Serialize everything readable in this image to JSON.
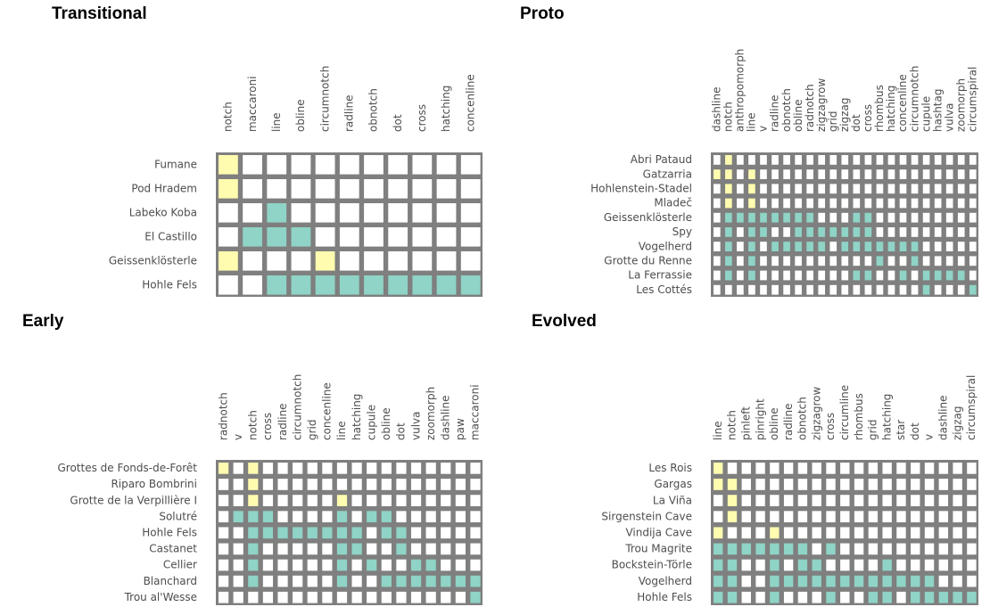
{
  "colors": {
    "background": "#ffffff",
    "grid": "#7f7f7f",
    "empty": "#ffffff",
    "first": "#fffcb0",
    "later": "#8fd4c6"
  },
  "chart_data": [
    {
      "type": "heatmap",
      "title": "Transitional",
      "columns": [
        "notch",
        "maccaroni",
        "line",
        "obline",
        "circumnotch",
        "radline",
        "obnotch",
        "dot",
        "cross",
        "hatching",
        "concenline"
      ],
      "rows": [
        "Fumane",
        "Pod Hradem",
        "Labeko Koba",
        "El Castillo",
        "Geissenklösterle",
        "Hohle Fels"
      ],
      "cells": [
        [
          1,
          0,
          0,
          0,
          0,
          0,
          0,
          0,
          0,
          0,
          0
        ],
        [
          1,
          0,
          0,
          0,
          0,
          0,
          0,
          0,
          0,
          0,
          0
        ],
        [
          0,
          0,
          2,
          0,
          0,
          0,
          0,
          0,
          0,
          0,
          0
        ],
        [
          0,
          2,
          2,
          2,
          0,
          0,
          0,
          0,
          0,
          0,
          0
        ],
        [
          1,
          0,
          0,
          0,
          1,
          0,
          0,
          0,
          0,
          0,
          0
        ],
        [
          0,
          0,
          2,
          2,
          2,
          2,
          2,
          2,
          2,
          2,
          2
        ]
      ]
    },
    {
      "type": "heatmap",
      "title": "Proto",
      "columns": [
        "dashline",
        "notch",
        "anthropomorph",
        "line",
        "v",
        "radline",
        "obnotch",
        "obline",
        "radnotch",
        "zigzagrow",
        "grid",
        "zigzag",
        "dot",
        "cross",
        "rhombus",
        "hatching",
        "concenline",
        "circumnotch",
        "cupule",
        "hashtag",
        "vulva",
        "zoomorph",
        "circumspiral"
      ],
      "rows": [
        "Abri Pataud",
        "Gatzarria",
        "Hohlenstein-Stadel",
        "Mladeč",
        "Geissenklösterle",
        "Spy",
        "Vogelherd",
        "Grotte du Renne",
        "La Ferrassie",
        "Les Cottés"
      ],
      "cells": [
        [
          0,
          1,
          0,
          0,
          0,
          0,
          0,
          0,
          0,
          0,
          0,
          0,
          0,
          0,
          0,
          0,
          0,
          0,
          0,
          0,
          0,
          0,
          0
        ],
        [
          1,
          1,
          0,
          1,
          0,
          0,
          0,
          0,
          0,
          0,
          0,
          0,
          0,
          0,
          0,
          0,
          0,
          0,
          0,
          0,
          0,
          0,
          0
        ],
        [
          0,
          1,
          0,
          1,
          0,
          0,
          0,
          0,
          0,
          0,
          0,
          0,
          0,
          0,
          0,
          0,
          0,
          0,
          0,
          0,
          0,
          0,
          0
        ],
        [
          0,
          1,
          0,
          1,
          0,
          0,
          0,
          0,
          0,
          0,
          0,
          0,
          0,
          0,
          0,
          0,
          0,
          0,
          0,
          0,
          0,
          0,
          0
        ],
        [
          0,
          2,
          2,
          2,
          2,
          2,
          2,
          2,
          2,
          0,
          0,
          0,
          2,
          2,
          0,
          0,
          0,
          0,
          0,
          0,
          0,
          0,
          0
        ],
        [
          0,
          2,
          0,
          2,
          2,
          0,
          0,
          2,
          2,
          2,
          2,
          2,
          2,
          2,
          0,
          0,
          0,
          0,
          0,
          0,
          0,
          0,
          0
        ],
        [
          0,
          2,
          0,
          2,
          0,
          2,
          2,
          2,
          2,
          2,
          0,
          2,
          2,
          2,
          2,
          2,
          2,
          2,
          0,
          0,
          0,
          0,
          0
        ],
        [
          0,
          2,
          0,
          2,
          0,
          0,
          0,
          0,
          0,
          0,
          0,
          0,
          0,
          0,
          2,
          0,
          0,
          2,
          0,
          0,
          0,
          0,
          0
        ],
        [
          0,
          2,
          0,
          2,
          0,
          0,
          0,
          0,
          0,
          0,
          0,
          0,
          2,
          2,
          0,
          0,
          2,
          0,
          2,
          2,
          2,
          2,
          0
        ],
        [
          0,
          0,
          0,
          0,
          0,
          0,
          0,
          0,
          0,
          0,
          0,
          0,
          0,
          0,
          0,
          0,
          0,
          0,
          2,
          0,
          0,
          0,
          2
        ]
      ]
    },
    {
      "type": "heatmap",
      "title": "Early",
      "columns": [
        "radnotch",
        "v",
        "notch",
        "cross",
        "radline",
        "circumnotch",
        "grid",
        "concenline",
        "line",
        "hatching",
        "cupule",
        "obline",
        "dot",
        "vulva",
        "zoomorph",
        "dashline",
        "paw",
        "maccaroni"
      ],
      "rows": [
        "Grottes de Fonds-de-Forêt",
        "Riparo Bombrini",
        "Grotte de la Verpillière I",
        "Solutré",
        "Hohle Fels",
        "Castanet",
        "Cellier",
        "Blanchard",
        "Trou al'Wesse"
      ],
      "cells": [
        [
          1,
          0,
          1,
          0,
          0,
          0,
          0,
          0,
          0,
          0,
          0,
          0,
          0,
          0,
          0,
          0,
          0,
          0
        ],
        [
          0,
          0,
          1,
          0,
          0,
          0,
          0,
          0,
          0,
          0,
          0,
          0,
          0,
          0,
          0,
          0,
          0,
          0
        ],
        [
          0,
          0,
          1,
          0,
          0,
          0,
          0,
          0,
          1,
          0,
          0,
          0,
          0,
          0,
          0,
          0,
          0,
          0
        ],
        [
          0,
          2,
          2,
          2,
          0,
          0,
          0,
          0,
          2,
          0,
          2,
          2,
          0,
          0,
          0,
          0,
          0,
          0
        ],
        [
          0,
          0,
          2,
          2,
          2,
          2,
          2,
          2,
          2,
          2,
          0,
          2,
          2,
          0,
          0,
          0,
          0,
          0
        ],
        [
          0,
          0,
          2,
          0,
          0,
          0,
          0,
          0,
          2,
          2,
          0,
          0,
          2,
          0,
          0,
          0,
          0,
          0
        ],
        [
          0,
          0,
          2,
          0,
          0,
          0,
          0,
          0,
          2,
          0,
          2,
          0,
          0,
          2,
          2,
          0,
          0,
          0
        ],
        [
          0,
          0,
          2,
          0,
          0,
          0,
          0,
          0,
          2,
          0,
          0,
          2,
          2,
          2,
          2,
          2,
          2,
          2
        ],
        [
          0,
          0,
          0,
          0,
          0,
          0,
          0,
          0,
          0,
          0,
          0,
          0,
          0,
          0,
          0,
          0,
          0,
          2
        ]
      ]
    },
    {
      "type": "heatmap",
      "title": "Evolved",
      "columns": [
        "line",
        "notch",
        "pinleft",
        "pinright",
        "obline",
        "radline",
        "obnotch",
        "zigzagrow",
        "cross",
        "circumline",
        "rhombus",
        "grid",
        "hatching",
        "star",
        "dot",
        "v",
        "dashline",
        "zigzag",
        "circumspiral"
      ],
      "rows": [
        "Les Rois",
        "Gargas",
        "La Viña",
        "Sirgenstein Cave",
        "Vindija Cave",
        "Trou Magrite",
        "Bockstein-Törle",
        "Vogelherd",
        "Hohle Fels"
      ],
      "cells": [
        [
          1,
          0,
          0,
          0,
          0,
          0,
          0,
          0,
          0,
          0,
          0,
          0,
          0,
          0,
          0,
          0,
          0,
          0,
          0
        ],
        [
          1,
          1,
          0,
          0,
          0,
          0,
          0,
          0,
          0,
          0,
          0,
          0,
          0,
          0,
          0,
          0,
          0,
          0,
          0
        ],
        [
          0,
          1,
          0,
          0,
          0,
          0,
          0,
          0,
          0,
          0,
          0,
          0,
          0,
          0,
          0,
          0,
          0,
          0,
          0
        ],
        [
          0,
          1,
          0,
          0,
          0,
          0,
          0,
          0,
          0,
          0,
          0,
          0,
          0,
          0,
          0,
          0,
          0,
          0,
          0
        ],
        [
          1,
          0,
          0,
          0,
          1,
          0,
          0,
          0,
          0,
          0,
          0,
          0,
          0,
          0,
          0,
          0,
          0,
          0,
          0
        ],
        [
          2,
          2,
          2,
          2,
          2,
          2,
          2,
          0,
          2,
          0,
          0,
          0,
          0,
          0,
          0,
          0,
          0,
          0,
          0
        ],
        [
          2,
          2,
          0,
          0,
          2,
          0,
          2,
          2,
          0,
          0,
          0,
          0,
          2,
          0,
          0,
          0,
          0,
          0,
          0
        ],
        [
          2,
          2,
          0,
          0,
          2,
          2,
          2,
          2,
          2,
          2,
          2,
          2,
          2,
          2,
          2,
          2,
          0,
          0,
          0
        ],
        [
          2,
          2,
          0,
          0,
          2,
          0,
          0,
          0,
          2,
          0,
          0,
          2,
          2,
          0,
          2,
          2,
          2,
          2,
          2
        ]
      ]
    }
  ]
}
